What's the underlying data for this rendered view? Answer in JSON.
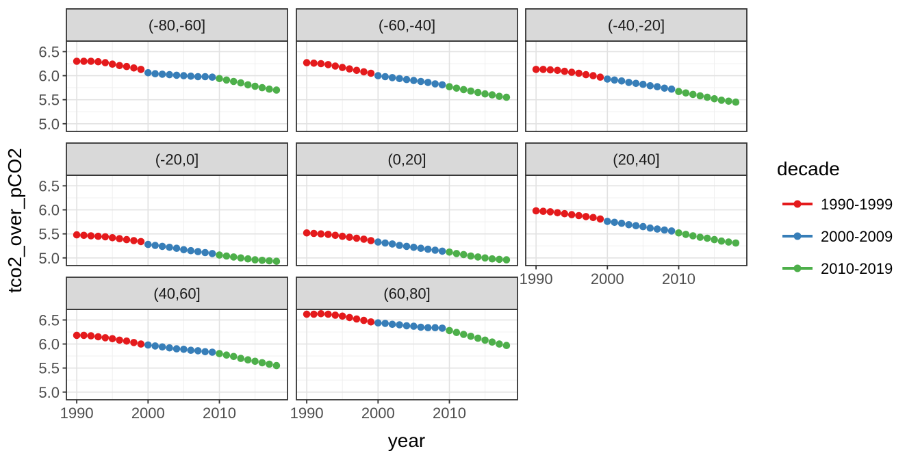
{
  "chart_data": {
    "type": "scatter",
    "title": "",
    "xlabel": "year",
    "ylabel": "tco2_over_pCO2",
    "grid": true,
    "legend": {
      "title": "decade",
      "position": "right",
      "entries": [
        {
          "label": "1990-1999",
          "color": "#E41A1C"
        },
        {
          "label": "2000-2009",
          "color": "#377EB8"
        },
        {
          "label": "2010-2019",
          "color": "#4DAF4A"
        }
      ]
    },
    "facet_layout": {
      "nrow": 3,
      "ncol": 3
    },
    "xlim": [
      1988.55,
      2019.55
    ],
    "ylim": [
      4.84,
      6.72
    ],
    "x_major_ticks": [
      1990,
      2000,
      2010
    ],
    "x_minor_ticks": [
      1995,
      2005,
      2015
    ],
    "y_major_ticks": [
      5.0,
      5.5,
      6.0,
      6.5
    ],
    "y_minor_ticks": [
      5.25,
      5.75,
      6.25
    ],
    "x": [
      1990,
      1991,
      1992,
      1993,
      1994,
      1995,
      1996,
      1997,
      1998,
      1999,
      2000,
      2001,
      2002,
      2003,
      2004,
      2005,
      2006,
      2007,
      2008,
      2009,
      2010,
      2011,
      2012,
      2013,
      2014,
      2015,
      2016,
      2017,
      2018
    ],
    "facets": [
      {
        "label": "(-80,-60]",
        "values": [
          6.3,
          6.3,
          6.3,
          6.29,
          6.27,
          6.24,
          6.21,
          6.19,
          6.16,
          6.13,
          6.06,
          6.04,
          6.03,
          6.02,
          6.01,
          6.0,
          5.99,
          5.98,
          5.98,
          5.97,
          5.94,
          5.91,
          5.88,
          5.85,
          5.81,
          5.78,
          5.75,
          5.72,
          5.7
        ]
      },
      {
        "label": "(-60,-40]",
        "values": [
          6.27,
          6.26,
          6.25,
          6.23,
          6.2,
          6.17,
          6.14,
          6.11,
          6.08,
          6.05,
          6.0,
          5.98,
          5.96,
          5.94,
          5.92,
          5.9,
          5.88,
          5.86,
          5.83,
          5.81,
          5.77,
          5.74,
          5.71,
          5.68,
          5.65,
          5.62,
          5.6,
          5.57,
          5.55
        ]
      },
      {
        "label": "(-40,-20]",
        "values": [
          6.13,
          6.13,
          6.12,
          6.11,
          6.09,
          6.07,
          6.05,
          6.02,
          6.0,
          5.97,
          5.93,
          5.91,
          5.89,
          5.86,
          5.84,
          5.82,
          5.79,
          5.77,
          5.74,
          5.72,
          5.67,
          5.64,
          5.61,
          5.58,
          5.55,
          5.52,
          5.49,
          5.47,
          5.45
        ]
      },
      {
        "label": "(-20,0]",
        "values": [
          5.48,
          5.47,
          5.46,
          5.45,
          5.44,
          5.42,
          5.4,
          5.38,
          5.36,
          5.34,
          5.28,
          5.26,
          5.24,
          5.22,
          5.2,
          5.17,
          5.15,
          5.13,
          5.11,
          5.09,
          5.06,
          5.04,
          5.02,
          5.0,
          4.98,
          4.96,
          4.95,
          4.94,
          4.93
        ]
      },
      {
        "label": "(0,20]",
        "values": [
          5.52,
          5.51,
          5.5,
          5.49,
          5.47,
          5.45,
          5.43,
          5.41,
          5.39,
          5.36,
          5.33,
          5.31,
          5.29,
          5.26,
          5.24,
          5.22,
          5.2,
          5.18,
          5.16,
          5.14,
          5.12,
          5.09,
          5.07,
          5.04,
          5.02,
          5.0,
          4.98,
          4.97,
          4.96
        ]
      },
      {
        "label": "(20,40]",
        "values": [
          5.98,
          5.97,
          5.96,
          5.94,
          5.92,
          5.9,
          5.88,
          5.86,
          5.84,
          5.81,
          5.76,
          5.74,
          5.72,
          5.69,
          5.67,
          5.65,
          5.62,
          5.6,
          5.58,
          5.56,
          5.52,
          5.49,
          5.46,
          5.43,
          5.41,
          5.38,
          5.35,
          5.33,
          5.31
        ]
      },
      {
        "label": "(40,60]",
        "values": [
          6.18,
          6.18,
          6.17,
          6.15,
          6.13,
          6.11,
          6.08,
          6.06,
          6.03,
          6.0,
          5.98,
          5.96,
          5.94,
          5.92,
          5.9,
          5.89,
          5.87,
          5.86,
          5.84,
          5.83,
          5.8,
          5.77,
          5.74,
          5.7,
          5.67,
          5.64,
          5.61,
          5.58,
          5.55
        ]
      },
      {
        "label": "(60,80]",
        "values": [
          6.62,
          6.62,
          6.63,
          6.62,
          6.6,
          6.58,
          6.55,
          6.52,
          6.49,
          6.46,
          6.44,
          6.43,
          6.41,
          6.4,
          6.38,
          6.37,
          6.35,
          6.34,
          6.34,
          6.33,
          6.28,
          6.24,
          6.2,
          6.16,
          6.12,
          6.08,
          6.04,
          6.0,
          5.97
        ]
      }
    ]
  },
  "theme": {
    "background": "#FFFFFF",
    "panel_bg": "#FFFFFF",
    "strip_bg": "#D9D9D9",
    "strip_text": "#1A1A1A",
    "panel_border": "#333333",
    "grid_major": "#E2E2E2",
    "grid_minor": "#F0F0F0",
    "axis_text": "#4D4D4D",
    "axis_title": "#000000",
    "tick_mark": "#333333"
  }
}
